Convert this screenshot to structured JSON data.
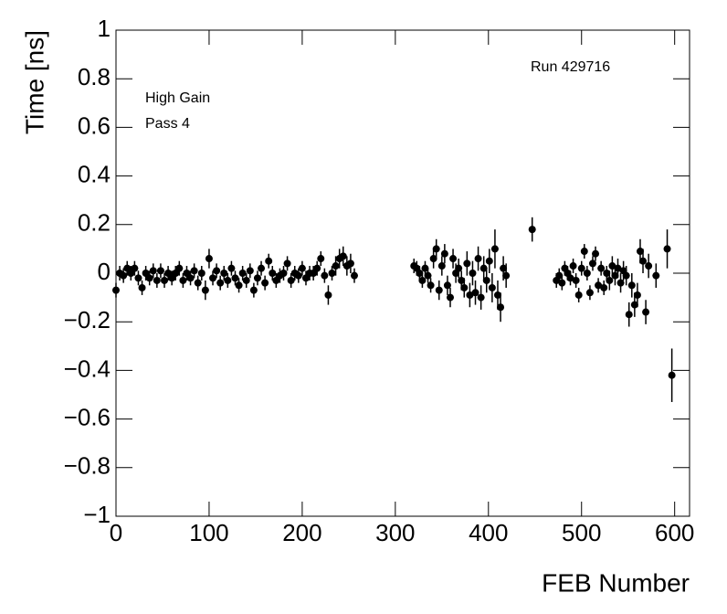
{
  "chart_data": {
    "type": "scatter",
    "xlabel": "FEB Number",
    "ylabel": "Time [ns]",
    "annotations": [
      "Run 429716",
      "High Gain",
      "Pass 4"
    ],
    "xlim": [
      0,
      616
    ],
    "ylim": [
      -1,
      1
    ],
    "xticks": [
      0,
      100,
      200,
      300,
      400,
      500,
      600
    ],
    "yticks": [
      {
        "value": -1,
        "label": "−1"
      },
      {
        "value": -0.8,
        "label": "−0.8"
      },
      {
        "value": -0.6,
        "label": "−0.6"
      },
      {
        "value": -0.4,
        "label": "−0.4"
      },
      {
        "value": -0.2,
        "label": "−0.2"
      },
      0,
      0.2,
      0.4,
      0.6,
      0.8,
      1
    ],
    "color": "#000000",
    "x": [
      0,
      4,
      8,
      12,
      16,
      20,
      24,
      28,
      32,
      36,
      40,
      44,
      48,
      52,
      56,
      60,
      64,
      68,
      72,
      76,
      80,
      84,
      88,
      92,
      96,
      100,
      104,
      108,
      112,
      116,
      120,
      124,
      128,
      132,
      136,
      140,
      144,
      148,
      152,
      156,
      160,
      164,
      168,
      172,
      176,
      180,
      184,
      188,
      192,
      196,
      200,
      204,
      208,
      212,
      216,
      220,
      224,
      228,
      232,
      236,
      240,
      244,
      248,
      252,
      256,
      320,
      323,
      326,
      329,
      332,
      335,
      338,
      341,
      344,
      347,
      350,
      353,
      356,
      359,
      362,
      365,
      368,
      371,
      374,
      377,
      380,
      383,
      386,
      389,
      392,
      395,
      398,
      401,
      404,
      407,
      410,
      413,
      416,
      419,
      447,
      473,
      476,
      479,
      482,
      485,
      488,
      491,
      494,
      497,
      500,
      503,
      506,
      509,
      512,
      515,
      518,
      521,
      524,
      527,
      530,
      533,
      536,
      539,
      542,
      545,
      548,
      551,
      554,
      557,
      560,
      563,
      566,
      569,
      572,
      580,
      592,
      597
    ],
    "values": [
      -0.07,
      0.0,
      -0.01,
      0.02,
      0.0,
      0.02,
      -0.02,
      -0.06,
      0.0,
      -0.02,
      0.01,
      -0.03,
      0.01,
      -0.03,
      0.0,
      -0.02,
      0.0,
      0.02,
      -0.03,
      0.0,
      -0.02,
      0.01,
      -0.04,
      0.0,
      -0.07,
      0.06,
      -0.02,
      0.01,
      -0.04,
      0.0,
      -0.03,
      0.02,
      -0.02,
      -0.05,
      0.0,
      -0.03,
      0.01,
      -0.07,
      -0.02,
      0.02,
      -0.04,
      0.05,
      0.0,
      -0.03,
      -0.01,
      0.0,
      0.04,
      -0.03,
      0.0,
      -0.01,
      0.02,
      -0.02,
      0.0,
      0.0,
      0.02,
      0.06,
      -0.01,
      -0.09,
      0.0,
      0.03,
      0.06,
      0.07,
      0.03,
      0.04,
      -0.01,
      0.03,
      0.02,
      0.0,
      -0.03,
      0.02,
      -0.01,
      -0.05,
      0.06,
      0.1,
      -0.07,
      0.03,
      0.08,
      -0.05,
      -0.1,
      0.06,
      0.0,
      0.02,
      -0.03,
      -0.06,
      0.04,
      -0.09,
      0.0,
      -0.08,
      0.06,
      -0.1,
      0.02,
      -0.03,
      0.05,
      -0.06,
      0.1,
      -0.09,
      -0.14,
      0.02,
      -0.01,
      0.18,
      -0.03,
      -0.01,
      -0.04,
      0.02,
      0.0,
      -0.02,
      0.03,
      -0.03,
      -0.09,
      0.02,
      0.09,
      0.0,
      -0.08,
      0.04,
      0.08,
      -0.05,
      0.02,
      -0.06,
      0.0,
      -0.03,
      0.03,
      -0.01,
      0.02,
      -0.04,
      0.01,
      -0.01,
      -0.17,
      -0.05,
      -0.13,
      -0.09,
      0.09,
      0.05,
      -0.16,
      0.03,
      -0.01,
      0.1,
      -0.42
    ],
    "errors": [
      0.03,
      0.03,
      0.03,
      0.03,
      0.03,
      0.03,
      0.03,
      0.03,
      0.03,
      0.03,
      0.03,
      0.03,
      0.03,
      0.03,
      0.03,
      0.03,
      0.03,
      0.03,
      0.03,
      0.03,
      0.03,
      0.03,
      0.03,
      0.03,
      0.04,
      0.04,
      0.03,
      0.03,
      0.03,
      0.03,
      0.03,
      0.03,
      0.03,
      0.03,
      0.03,
      0.03,
      0.03,
      0.03,
      0.03,
      0.03,
      0.03,
      0.03,
      0.03,
      0.03,
      0.03,
      0.03,
      0.03,
      0.03,
      0.03,
      0.03,
      0.03,
      0.03,
      0.03,
      0.03,
      0.03,
      0.03,
      0.03,
      0.04,
      0.03,
      0.04,
      0.04,
      0.04,
      0.04,
      0.04,
      0.03,
      0.03,
      0.03,
      0.03,
      0.03,
      0.03,
      0.03,
      0.03,
      0.04,
      0.04,
      0.04,
      0.04,
      0.04,
      0.04,
      0.04,
      0.04,
      0.04,
      0.04,
      0.04,
      0.04,
      0.05,
      0.05,
      0.05,
      0.05,
      0.05,
      0.05,
      0.05,
      0.05,
      0.05,
      0.06,
      0.08,
      0.06,
      0.06,
      0.05,
      0.05,
      0.05,
      0.03,
      0.03,
      0.03,
      0.03,
      0.03,
      0.03,
      0.03,
      0.03,
      0.03,
      0.03,
      0.03,
      0.03,
      0.03,
      0.03,
      0.03,
      0.03,
      0.03,
      0.03,
      0.03,
      0.04,
      0.04,
      0.04,
      0.04,
      0.04,
      0.04,
      0.04,
      0.05,
      0.05,
      0.05,
      0.05,
      0.05,
      0.05,
      0.05,
      0.05,
      0.05,
      0.08,
      0.11
    ]
  }
}
